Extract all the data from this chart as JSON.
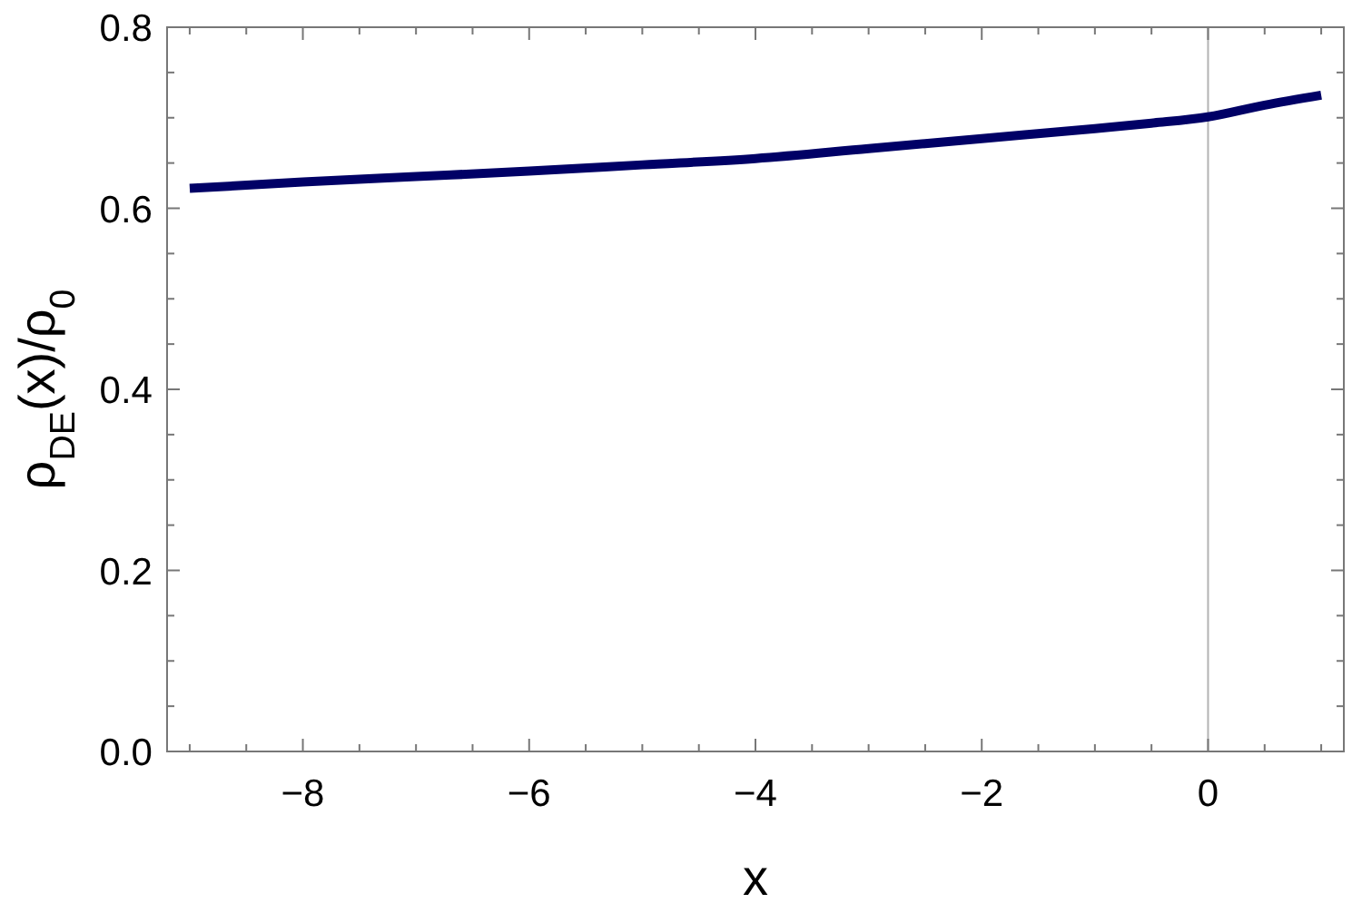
{
  "chart_data": {
    "type": "line",
    "xlabel": "x",
    "ylabel": "ρ$_{DE}$(x)/ρ$_{0}$",
    "x": [
      -9,
      -8,
      -7,
      -6,
      -5,
      -4,
      -3,
      -2,
      -1,
      -0.5,
      0,
      0.5,
      1
    ],
    "series": [
      {
        "color": "#000066",
        "values": [
          0.622,
          0.629,
          0.635,
          0.641,
          0.648,
          0.655,
          0.666,
          0.677,
          0.688,
          0.694,
          0.701,
          0.714,
          0.725
        ]
      }
    ],
    "xlim": [
      -9.2,
      1.2
    ],
    "ylim": [
      0,
      0.8
    ],
    "xticks": [
      {
        "value": -9,
        "label": null
      },
      {
        "value": -8,
        "label": "−8"
      },
      {
        "value": -8.5,
        "label": null
      },
      {
        "value": -7.5,
        "label": null
      },
      {
        "value": -7,
        "label": null
      },
      {
        "value": -6.5,
        "label": null
      },
      {
        "value": -6,
        "label": "−6"
      },
      {
        "value": -5.5,
        "label": null
      },
      {
        "value": -5,
        "label": null
      },
      {
        "value": -4.5,
        "label": null
      },
      {
        "value": -4,
        "label": "−4"
      },
      {
        "value": -3.5,
        "label": null
      },
      {
        "value": -3,
        "label": null
      },
      {
        "value": -2.5,
        "label": null
      },
      {
        "value": -2,
        "label": "−2"
      },
      {
        "value": -1.5,
        "label": null
      },
      {
        "value": -1,
        "label": null
      },
      {
        "value": -0.5,
        "label": null
      },
      {
        "value": 0,
        "label": "0"
      },
      {
        "value": 0.5,
        "label": null
      },
      {
        "value": 1,
        "label": null
      }
    ],
    "yticks": [
      {
        "value": 0,
        "label": "0.0"
      },
      {
        "value": 0.05,
        "label": null
      },
      {
        "value": 0.1,
        "label": null
      },
      {
        "value": 0.15,
        "label": null
      },
      {
        "value": 0.2,
        "label": "0.2"
      },
      {
        "value": 0.25,
        "label": null
      },
      {
        "value": 0.3,
        "label": null
      },
      {
        "value": 0.35,
        "label": null
      },
      {
        "value": 0.4,
        "label": "0.4"
      },
      {
        "value": 0.45,
        "label": null
      },
      {
        "value": 0.5,
        "label": null
      },
      {
        "value": 0.55,
        "label": null
      },
      {
        "value": 0.6,
        "label": "0.6"
      },
      {
        "value": 0.65,
        "label": null
      },
      {
        "value": 0.7,
        "label": null
      },
      {
        "value": 0.75,
        "label": null
      },
      {
        "value": 0.8,
        "label": "0.8"
      }
    ],
    "ref_lines": [
      {
        "axis": "x",
        "value": 0,
        "color": "#b3b3b3"
      }
    ],
    "grid": false,
    "marker": "none",
    "line_style": "solid"
  }
}
